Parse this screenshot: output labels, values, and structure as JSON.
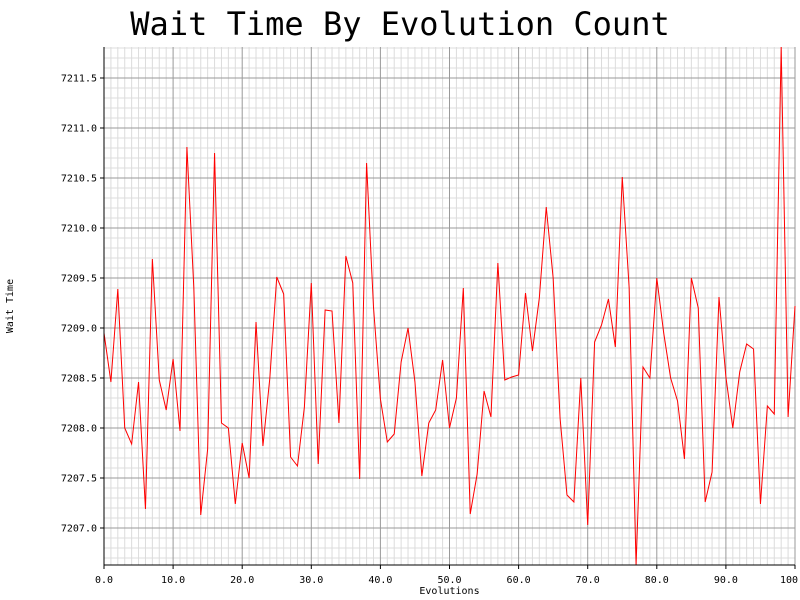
{
  "chart_data": {
    "type": "line",
    "title": "Wait Time By Evolution Count",
    "xlabel": "Evolutions",
    "ylabel": "Wait Time",
    "xlim": [
      0,
      100
    ],
    "ylim": [
      7206.63,
      7211.81
    ],
    "x_major_step": 10,
    "x_minor_step": 1,
    "y_major_step": 0.5,
    "y_minor_step": 0.1,
    "x_tick_labels": [
      "0.0",
      "10.0",
      "20.0",
      "30.0",
      "40.0",
      "50.0",
      "60.0",
      "70.0",
      "80.0",
      "90.0",
      "100.0"
    ],
    "y_tick_labels": [
      "7207.0",
      "7207.5",
      "7208.0",
      "7208.5",
      "7209.0",
      "7209.5",
      "7210.0",
      "7210.5",
      "7211.0",
      "7211.5"
    ],
    "grid": true,
    "line_color": "#ff0000",
    "series": [
      {
        "x": [
          0,
          1,
          2,
          3,
          4,
          5,
          6,
          7,
          8,
          9,
          10,
          11,
          12,
          13,
          14,
          15,
          16,
          17,
          18,
          19,
          20,
          21,
          22,
          23,
          24,
          25,
          26,
          27,
          28,
          29,
          30,
          31,
          32,
          33,
          34,
          35,
          36,
          37,
          38,
          39,
          40,
          41,
          42,
          43,
          44,
          45,
          46,
          47,
          48,
          49,
          50,
          51,
          52,
          53,
          54,
          55,
          56,
          57,
          58,
          59,
          60,
          61,
          62,
          63,
          64,
          65,
          66,
          67,
          68,
          69,
          70,
          71,
          72,
          73,
          74,
          75,
          76,
          77,
          78,
          79,
          80,
          81,
          82,
          83,
          84,
          85,
          86,
          87,
          88,
          89,
          90,
          91,
          92,
          93,
          94,
          95,
          96,
          97,
          98,
          99,
          100
        ],
        "values": [
          7208.95,
          7208.46,
          7209.39,
          7208.0,
          7207.84,
          7208.46,
          7207.19,
          7209.69,
          7208.48,
          7208.18,
          7208.69,
          7207.97,
          7210.81,
          7209.4,
          7207.13,
          7207.79,
          7210.75,
          7208.05,
          7208.0,
          7207.24,
          7207.85,
          7207.5,
          7209.06,
          7207.82,
          7208.5,
          7209.51,
          7209.34,
          7207.71,
          7207.62,
          7208.21,
          7209.45,
          7207.64,
          7209.18,
          7209.17,
          7208.05,
          7209.72,
          7209.45,
          7207.49,
          7210.65,
          7209.21,
          7208.29,
          7207.86,
          7207.94,
          7208.66,
          7209.0,
          7208.46,
          7207.52,
          7208.05,
          7208.18,
          7208.68,
          7208.0,
          7208.3,
          7209.4,
          7207.14,
          7207.54,
          7208.37,
          7208.11,
          7209.65,
          7208.48,
          7208.51,
          7208.53,
          7209.35,
          7208.77,
          7209.3,
          7210.21,
          7209.5,
          7208.1,
          7207.33,
          7207.26,
          7208.5,
          7207.03,
          7208.86,
          7209.03,
          7209.29,
          7208.81,
          7210.51,
          7209.4,
          7206.63,
          7208.61,
          7208.5,
          7209.5,
          7208.95,
          7208.5,
          7208.27,
          7207.69,
          7209.5,
          7209.2,
          7207.26,
          7207.56,
          7209.31,
          7208.51,
          7208.0,
          7208.56,
          7208.84,
          7208.79,
          7207.24,
          7208.22,
          7208.14,
          7211.81,
          7208.11,
          7209.22
        ]
      }
    ]
  }
}
